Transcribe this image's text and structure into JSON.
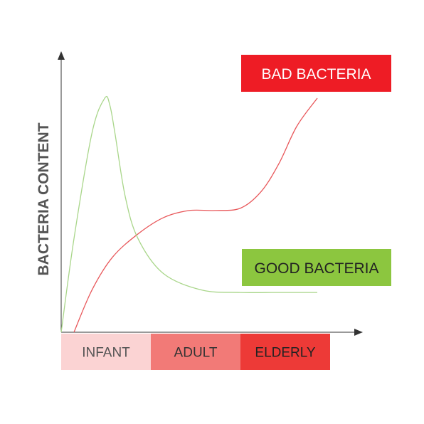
{
  "chart_data": {
    "type": "line",
    "ylabel": "BACTERIA CONTENT",
    "xlabel": "",
    "x_stages": [
      {
        "label": "INFANT",
        "color": "#fbd3d3",
        "text_color": "#555555"
      },
      {
        "label": "ADULT",
        "color": "#f27a77",
        "text_color": "#333333"
      },
      {
        "label": "ELDERLY",
        "color": "#ed3a37",
        "text_color": "#222222"
      }
    ],
    "xlim": [
      0,
      100
    ],
    "ylim": [
      0,
      100
    ],
    "series": [
      {
        "name": "BAD BACTERIA",
        "color": "#ee1c25",
        "line_color": "#e8575a",
        "x": [
          5,
          12,
          20,
          30,
          40,
          50,
          60,
          70,
          78,
          85,
          92,
          100
        ],
        "y": [
          0,
          18,
          32,
          42,
          49,
          52,
          52,
          53,
          60,
          72,
          88,
          100
        ]
      },
      {
        "name": "GOOD BACTERIA",
        "color": "#8cc63f",
        "line_color": "#a9d68a",
        "x": [
          0,
          5,
          12,
          17,
          19,
          21,
          25,
          30,
          40,
          55,
          70,
          85,
          100
        ],
        "y": [
          0,
          40,
          85,
          100,
          97,
          85,
          58,
          40,
          25,
          18,
          17,
          17,
          17
        ]
      }
    ]
  }
}
